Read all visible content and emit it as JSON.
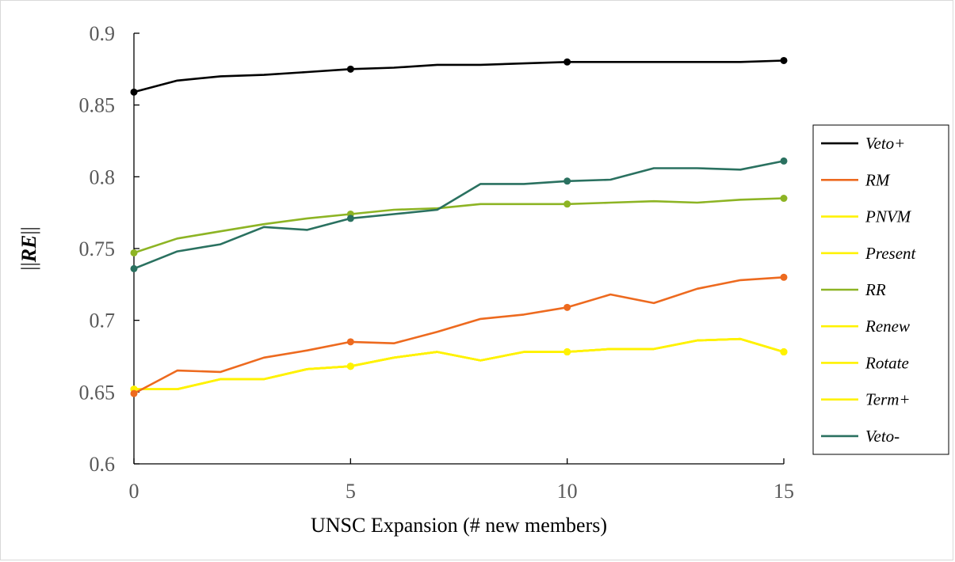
{
  "chart_data": {
    "type": "line",
    "title": "",
    "xlabel": "UNSC Expansion (# new members)",
    "ylabel": "||RE||",
    "ylabel_parts": {
      "pre": "||",
      "mid": "RE",
      "post": "||"
    },
    "xlim": [
      0,
      15
    ],
    "ylim": [
      0.6,
      0.9
    ],
    "xticks": [
      "0",
      "5",
      "10",
      "15"
    ],
    "yticks": [
      "0.6",
      "0.65",
      "0.7",
      "0.75",
      "0.8",
      "0.85",
      "0.9"
    ],
    "grid": false,
    "legend_position": "right",
    "x": [
      0,
      1,
      2,
      3,
      4,
      5,
      6,
      7,
      8,
      9,
      10,
      11,
      12,
      13,
      14,
      15
    ],
    "marker_x": [
      0,
      5,
      10,
      15
    ],
    "series": [
      {
        "name": "Veto+",
        "color": "#000000",
        "values": [
          0.859,
          0.867,
          0.87,
          0.871,
          0.873,
          0.875,
          0.876,
          0.878,
          0.878,
          0.879,
          0.88,
          0.88,
          0.88,
          0.88,
          0.88,
          0.881
        ]
      },
      {
        "name": "RM",
        "color": "#ED6A1F",
        "values": [
          0.649,
          0.665,
          0.664,
          0.674,
          0.679,
          0.685,
          0.684,
          0.692,
          0.701,
          0.704,
          0.709,
          0.718,
          0.712,
          0.722,
          0.728,
          0.73
        ]
      },
      {
        "name": "PNVM",
        "color": "#FFF200",
        "values": [
          0.652,
          0.652,
          0.659,
          0.659,
          0.666,
          0.668,
          0.674,
          0.678,
          0.672,
          0.678,
          0.678,
          0.68,
          0.68,
          0.686,
          0.687,
          0.678
        ]
      },
      {
        "name": "Present",
        "color": "#FFF200",
        "values": [
          0.652,
          0.652,
          0.659,
          0.659,
          0.666,
          0.668,
          0.674,
          0.678,
          0.672,
          0.678,
          0.678,
          0.68,
          0.68,
          0.686,
          0.687,
          0.678
        ]
      },
      {
        "name": "RR",
        "color": "#8DB424",
        "values": [
          0.747,
          0.757,
          0.762,
          0.767,
          0.771,
          0.774,
          0.777,
          0.778,
          0.781,
          0.781,
          0.781,
          0.782,
          0.783,
          0.782,
          0.784,
          0.785
        ]
      },
      {
        "name": "Renew",
        "color": "#FFF200",
        "values": [
          0.652,
          0.652,
          0.659,
          0.659,
          0.666,
          0.668,
          0.674,
          0.678,
          0.672,
          0.678,
          0.678,
          0.68,
          0.68,
          0.686,
          0.687,
          0.678
        ]
      },
      {
        "name": "Rotate",
        "color": "#FFF200",
        "values": [
          0.652,
          0.652,
          0.659,
          0.659,
          0.666,
          0.668,
          0.674,
          0.678,
          0.672,
          0.678,
          0.678,
          0.68,
          0.68,
          0.686,
          0.687,
          0.678
        ]
      },
      {
        "name": "Term+",
        "color": "#FFF200",
        "values": [
          0.652,
          0.652,
          0.659,
          0.659,
          0.666,
          0.668,
          0.674,
          0.678,
          0.672,
          0.678,
          0.678,
          0.68,
          0.68,
          0.686,
          0.687,
          0.678
        ]
      },
      {
        "name": "Veto-",
        "color": "#2A7160",
        "values": [
          0.736,
          0.748,
          0.753,
          0.765,
          0.763,
          0.771,
          0.774,
          0.777,
          0.795,
          0.795,
          0.797,
          0.798,
          0.806,
          0.806,
          0.805,
          0.811
        ]
      }
    ]
  }
}
